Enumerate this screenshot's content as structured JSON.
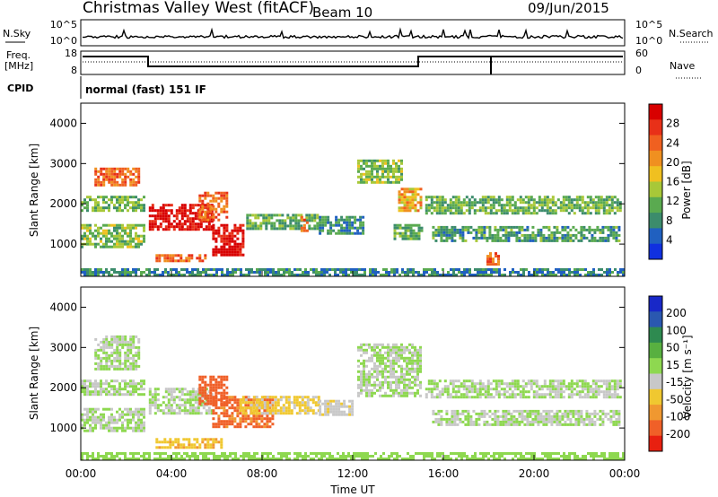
{
  "header": {
    "title": "Christmas Valley West (fitACF)",
    "beam": "Beam 10",
    "date": "09/Jun/2015"
  },
  "side_labels": {
    "nsky": "N.Sky",
    "nsearch": "N.Search",
    "freq_line1": "Freq.",
    "freq_line2": "[MHz]",
    "nave": "Nave",
    "cpid": "CPID"
  },
  "cpid_text": "normal (fast) 151 IF",
  "small_axes": {
    "noise_ticks": [
      "10^5",
      "10^0"
    ],
    "freq_ticks": [
      "18",
      "8"
    ],
    "nave_ticks": [
      "60",
      "0"
    ]
  },
  "colors": {
    "power_scale": [
      "#1030e0",
      "#2060c0",
      "#3c8c6c",
      "#5aaa50",
      "#a8c838",
      "#f0c020",
      "#f09020",
      "#f06020",
      "#e83018",
      "#d80000"
    ],
    "velocity_scale": [
      "#1828c8",
      "#2a58b0",
      "#2e8a50",
      "#58b040",
      "#8ed850",
      "#c8c8c8",
      "#f0c830",
      "#f09830",
      "#f06028",
      "#e82010"
    ],
    "rangegate_ground": "#5aa040",
    "gray": "#c8c8c8"
  },
  "chart_data": [
    {
      "type": "heatmap",
      "name": "power",
      "xlabel": "",
      "ylabel": "Slant Range [km]",
      "yticks": [
        "1000",
        "2000",
        "3000",
        "4000"
      ],
      "ylim": [
        200,
        4500
      ],
      "xlim": [
        0,
        24
      ],
      "colorbar_label": "Power [dB]",
      "colorbar_ticks": [
        "4",
        "8",
        "12",
        "16",
        "20",
        "24",
        "28"
      ],
      "colorbar_range": [
        0,
        30
      ],
      "regions": [
        {
          "t": [
            0.6,
            2.6
          ],
          "r": [
            2450,
            2900
          ],
          "v": 22
        },
        {
          "t": [
            3.0,
            5.8
          ],
          "r": [
            1350,
            2000
          ],
          "v": 28
        },
        {
          "t": [
            5.2,
            6.5
          ],
          "r": [
            1600,
            2300
          ],
          "v": 22
        },
        {
          "t": [
            5.8,
            7.2
          ],
          "r": [
            750,
            1500
          ],
          "v": 29
        },
        {
          "t": [
            3.3,
            5.5
          ],
          "r": [
            550,
            750
          ],
          "v": 22
        },
        {
          "t": [
            0.0,
            2.8
          ],
          "r": [
            900,
            1500
          ],
          "v": 12
        },
        {
          "t": [
            0.0,
            2.8
          ],
          "r": [
            1800,
            2200
          ],
          "v": 11
        },
        {
          "t": [
            7.3,
            10.5
          ],
          "r": [
            1350,
            1750
          ],
          "v": 10
        },
        {
          "t": [
            9.7,
            10.0
          ],
          "r": [
            1350,
            1700
          ],
          "v": 22
        },
        {
          "t": [
            10.5,
            12.5
          ],
          "r": [
            1250,
            1700
          ],
          "v": 8
        },
        {
          "t": [
            12.2,
            14.2
          ],
          "r": [
            2500,
            3100
          ],
          "v": 12
        },
        {
          "t": [
            14.0,
            15.0
          ],
          "r": [
            1800,
            2400
          ],
          "v": 18
        },
        {
          "t": [
            13.8,
            15.0
          ],
          "r": [
            1150,
            1500
          ],
          "v": 10
        },
        {
          "t": [
            15.2,
            23.8
          ],
          "r": [
            1750,
            2200
          ],
          "v": 11
        },
        {
          "t": [
            15.5,
            23.8
          ],
          "r": [
            1100,
            1450
          ],
          "v": 9
        },
        {
          "t": [
            17.9,
            18.4
          ],
          "r": [
            500,
            800
          ],
          "v": 22
        },
        {
          "t": [
            0.0,
            24.0
          ],
          "r": [
            200,
            400
          ],
          "v": 7
        }
      ]
    },
    {
      "type": "heatmap",
      "name": "velocity",
      "xlabel": "Time UT",
      "ylabel": "Slant Range [km]",
      "xticks": [
        "00:00",
        "04:00",
        "08:00",
        "12:00",
        "16:00",
        "20:00",
        "00:00"
      ],
      "yticks": [
        "1000",
        "2000",
        "3000",
        "4000"
      ],
      "ylim": [
        200,
        4500
      ],
      "xlim": [
        0,
        24
      ],
      "colorbar_label": "Velocity [m s⁻¹]",
      "colorbar_ticks": [
        "200",
        "100",
        "50",
        "15",
        "-15",
        "-50",
        "-100",
        "-200"
      ],
      "colorbar_range": [
        -250,
        250
      ],
      "regions": [
        {
          "t": [
            0.6,
            2.6
          ],
          "r": [
            2450,
            3300
          ],
          "v": 0
        },
        {
          "t": [
            3.0,
            5.8
          ],
          "r": [
            1350,
            2000
          ],
          "v": 0
        },
        {
          "t": [
            5.2,
            6.5
          ],
          "r": [
            1600,
            2300
          ],
          "v": -180
        },
        {
          "t": [
            5.8,
            8.5
          ],
          "r": [
            1000,
            1800
          ],
          "v": -160
        },
        {
          "t": [
            3.3,
            6.2
          ],
          "r": [
            500,
            750
          ],
          "v": -90
        },
        {
          "t": [
            7.0,
            10.5
          ],
          "r": [
            1350,
            1800
          ],
          "v": -60
        },
        {
          "t": [
            10.5,
            12.0
          ],
          "r": [
            1300,
            1700
          ],
          "v": -35
        },
        {
          "t": [
            0.0,
            2.8
          ],
          "r": [
            900,
            1500
          ],
          "v": 0
        },
        {
          "t": [
            0.0,
            2.8
          ],
          "r": [
            1800,
            2200
          ],
          "v": 0
        },
        {
          "t": [
            12.2,
            15.0
          ],
          "r": [
            1800,
            3100
          ],
          "v": 0
        },
        {
          "t": [
            15.2,
            23.8
          ],
          "r": [
            1750,
            2200
          ],
          "v": 0
        },
        {
          "t": [
            15.5,
            23.8
          ],
          "r": [
            1100,
            1450
          ],
          "v": 0
        },
        {
          "t": [
            0.0,
            24.0
          ],
          "r": [
            200,
            400
          ],
          "v": 30
        }
      ]
    }
  ]
}
